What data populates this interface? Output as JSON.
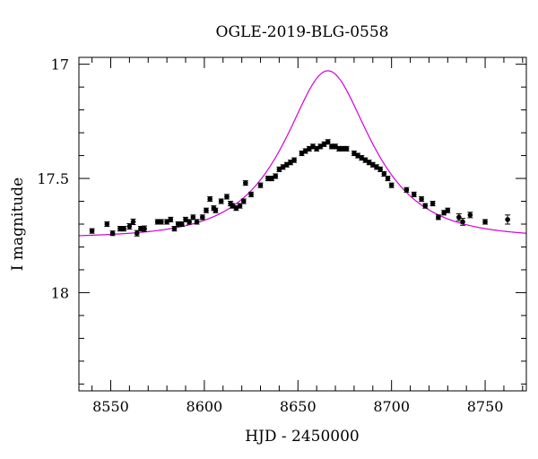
{
  "chart_data": {
    "type": "scatter",
    "title": "OGLE-2019-BLG-0558",
    "xlabel": "HJD - 2450000",
    "ylabel": "I magnitude",
    "xlim": [
      8533,
      8772
    ],
    "ylim": [
      18.43,
      16.97
    ],
    "y_inverted": true,
    "x_ticks": [
      8550,
      8600,
      8650,
      8700,
      8750
    ],
    "x_tick_labels": [
      "8550",
      "8600",
      "8650",
      "8700",
      "8750"
    ],
    "y_ticks": [
      17,
      17.5,
      18
    ],
    "y_tick_labels": [
      "17",
      "17.5",
      "18"
    ],
    "model": {
      "t0": 8666,
      "tE": 37,
      "u0": 0.57,
      "baseline": 17.76,
      "color": "#d400d4"
    },
    "series": [
      {
        "points": [
          [
            8540,
            17.73,
            0.01
          ],
          [
            8548,
            17.7,
            0.01
          ],
          [
            8551,
            17.74,
            0.01
          ],
          [
            8555,
            17.72,
            0.01
          ],
          [
            8557,
            17.72,
            0.01
          ],
          [
            8560,
            17.71,
            0.012
          ],
          [
            8562,
            17.69,
            0.012
          ],
          [
            8564,
            17.74,
            0.012
          ],
          [
            8566,
            17.72,
            0.01
          ],
          [
            8568,
            17.72,
            0.012
          ],
          [
            8575,
            17.69,
            0.01
          ],
          [
            8577,
            17.69,
            0.01
          ],
          [
            8580,
            17.69,
            0.01
          ],
          [
            8582,
            17.68,
            0.01
          ],
          [
            8584,
            17.72,
            0.01
          ],
          [
            8586,
            17.7,
            0.01
          ],
          [
            8588,
            17.7,
            0.01
          ],
          [
            8590,
            17.68,
            0.01
          ],
          [
            8592,
            17.69,
            0.01
          ],
          [
            8594,
            17.67,
            0.01
          ],
          [
            8596,
            17.69,
            0.01
          ],
          [
            8599,
            17.67,
            0.01
          ],
          [
            8601,
            17.64,
            0.01
          ],
          [
            8603,
            17.59,
            0.01
          ],
          [
            8605,
            17.63,
            0.01
          ],
          [
            8606,
            17.64,
            0.01
          ],
          [
            8609,
            17.6,
            0.01
          ],
          [
            8612,
            17.58,
            0.01
          ],
          [
            8614,
            17.61,
            0.01
          ],
          [
            8615,
            17.62,
            0.01
          ],
          [
            8617,
            17.63,
            0.01
          ],
          [
            8619,
            17.62,
            0.01
          ],
          [
            8621,
            17.6,
            0.01
          ],
          [
            8622,
            17.52,
            0.01
          ],
          [
            8625,
            17.57,
            0.01
          ],
          [
            8630,
            17.53,
            0.01
          ],
          [
            8634,
            17.5,
            0.01
          ],
          [
            8636,
            17.5,
            0.01
          ],
          [
            8638,
            17.49,
            0.01
          ],
          [
            8640,
            17.46,
            0.01
          ],
          [
            8642,
            17.45,
            0.01
          ],
          [
            8644,
            17.44,
            0.01
          ],
          [
            8646,
            17.43,
            0.01
          ],
          [
            8648,
            17.42,
            0.01
          ],
          [
            8652,
            17.39,
            0.01
          ],
          [
            8654,
            17.38,
            0.01
          ],
          [
            8656,
            17.37,
            0.01
          ],
          [
            8658,
            17.36,
            0.01
          ],
          [
            8660,
            17.37,
            0.01
          ],
          [
            8662,
            17.36,
            0.01
          ],
          [
            8664,
            17.35,
            0.01
          ],
          [
            8666,
            17.34,
            0.01
          ],
          [
            8668,
            17.36,
            0.01
          ],
          [
            8670,
            17.36,
            0.01
          ],
          [
            8672,
            17.37,
            0.01
          ],
          [
            8674,
            17.37,
            0.01
          ],
          [
            8676,
            17.37,
            0.01
          ],
          [
            8680,
            17.39,
            0.01
          ],
          [
            8682,
            17.4,
            0.01
          ],
          [
            8684,
            17.41,
            0.01
          ],
          [
            8686,
            17.42,
            0.01
          ],
          [
            8688,
            17.43,
            0.01
          ],
          [
            8690,
            17.44,
            0.01
          ],
          [
            8692,
            17.45,
            0.01
          ],
          [
            8694,
            17.46,
            0.01
          ],
          [
            8696,
            17.48,
            0.01
          ],
          [
            8698,
            17.5,
            0.01
          ],
          [
            8700,
            17.53,
            0.01
          ],
          [
            8708,
            17.55,
            0.01
          ],
          [
            8712,
            17.57,
            0.01
          ],
          [
            8716,
            17.59,
            0.01
          ],
          [
            8718,
            17.62,
            0.01
          ],
          [
            8722,
            17.61,
            0.01
          ],
          [
            8725,
            17.67,
            0.01
          ],
          [
            8728,
            17.65,
            0.01
          ],
          [
            8730,
            17.64,
            0.01
          ],
          [
            8736,
            17.67,
            0.015
          ],
          [
            8738,
            17.69,
            0.015
          ],
          [
            8742,
            17.66,
            0.012
          ],
          [
            8750,
            17.69,
            0.01
          ],
          [
            8762,
            17.68,
            0.02
          ]
        ]
      }
    ]
  }
}
